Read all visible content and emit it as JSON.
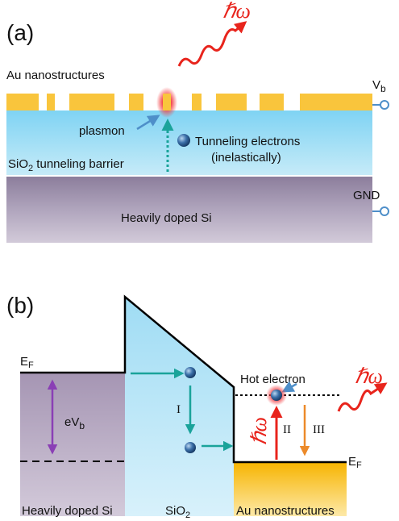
{
  "panel_a": {
    "label": "(a)",
    "photon": "ℏω",
    "au_label": "Au nanostructures",
    "vb": {
      "base": "V",
      "sub": "b"
    },
    "plasmon": "plasmon",
    "tunneling": "Tunneling electrons",
    "inelastic": "(inelastically)",
    "barrier": {
      "base": "SiO",
      "sub": "2",
      "rest": " tunneling barrier"
    },
    "gnd": "GND",
    "si": "Heavily doped Si"
  },
  "panel_b": {
    "label": "(b)",
    "ef_left": {
      "base": "E",
      "sub": "F"
    },
    "evb": {
      "base": "eV",
      "sub": "b"
    },
    "hot": "Hot electron",
    "step1": "I",
    "step2": "II",
    "step3": "III",
    "photon_up": "ℏω",
    "photon_out": "ℏω",
    "ef_right": {
      "base": "E",
      "sub": "F"
    },
    "si": "Heavily doped Si",
    "sio2": {
      "base": "SiO",
      "sub": "2"
    },
    "au": "Au nanostructures"
  }
}
